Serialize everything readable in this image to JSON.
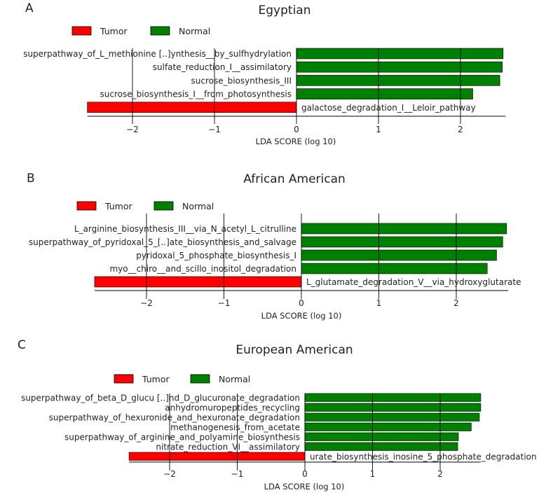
{
  "chart_data": [
    {
      "type": "bar",
      "panel_letter": "A",
      "title": "Egyptian",
      "xlabel": "LDA SCORE (log 10)",
      "xlim": [
        -2.55,
        2.55
      ],
      "xticks": [
        -2,
        -1,
        0,
        1,
        2
      ],
      "xtick_labels": [
        "−2",
        "−1",
        "0",
        "1",
        "2"
      ],
      "legend": {
        "position": "top-left",
        "entries": [
          {
            "name": "Tumor",
            "color": "#ff0000"
          },
          {
            "name": "Normal",
            "color": "#008000"
          }
        ]
      },
      "categories": [
        "superpathway_of_L_methionine [..]ynthesis__by_sulfhydrylation",
        "sulfate_reduction_I__assimilatory",
        "sucrose_biosynthesis_III",
        "sucrose_biosynthesis_I__from_photosynthesis",
        "galactose_degradation_I__Leloir_pathway"
      ],
      "values": [
        2.52,
        2.51,
        2.48,
        2.15,
        -2.55
      ],
      "groups": [
        "Normal",
        "Normal",
        "Normal",
        "Normal",
        "Tumor"
      ]
    },
    {
      "type": "bar",
      "panel_letter": "B",
      "title": "African American",
      "xlabel": "LDA SCORE (log 10)",
      "xlim": [
        -2.67,
        2.67
      ],
      "xticks": [
        -2,
        -1,
        0,
        1,
        2
      ],
      "xtick_labels": [
        "−2",
        "−1",
        "0",
        "1",
        "2"
      ],
      "legend": {
        "position": "top-left",
        "entries": [
          {
            "name": "Tumor",
            "color": "#ff0000"
          },
          {
            "name": "Normal",
            "color": "#008000"
          }
        ]
      },
      "categories": [
        "L_arginine_biosynthesis_III__via_N_acetyl_L_citrulline",
        "superpathway_of_pyridoxal_5_[..]ate_biosynthesis_and_salvage",
        "pyridoxal_5_phosphate_biosynthesis_I",
        "myo__chiro__and_scillo_inositol_degradation",
        "L_glutamate_degradation_V__via_hydroxyglutarate"
      ],
      "values": [
        2.65,
        2.6,
        2.52,
        2.4,
        -2.67
      ],
      "groups": [
        "Normal",
        "Normal",
        "Normal",
        "Normal",
        "Tumor"
      ]
    },
    {
      "type": "bar",
      "panel_letter": "C",
      "title": "European American",
      "xlabel": "LDA SCORE (log 10)",
      "xlim": [
        -2.6,
        2.6
      ],
      "xticks": [
        -2,
        -1,
        0,
        1,
        2
      ],
      "xtick_labels": [
        "−2",
        "−1",
        "0",
        "1",
        "2"
      ],
      "legend": {
        "position": "top-left",
        "entries": [
          {
            "name": "Tumor",
            "color": "#ff0000"
          },
          {
            "name": "Normal",
            "color": "#008000"
          }
        ]
      },
      "categories": [
        "superpathway_of_beta_D_glucu [..]nd_D_glucuronate_degradation",
        "anhydromuropeptides_recycling",
        "superpathway_of_hexuronide_and_hexuronate_degradation",
        "methanogenesis_from_acetate",
        "superpathway_of_arginine_and_polyamine_biosynthesis",
        "nitrate_reduction_VI__assimilatory",
        "urate_biosynthesis_inosine_5_phosphate_degradation"
      ],
      "values": [
        2.6,
        2.6,
        2.58,
        2.46,
        2.27,
        2.26,
        -2.6
      ],
      "groups": [
        "Normal",
        "Normal",
        "Normal",
        "Normal",
        "Normal",
        "Normal",
        "Tumor"
      ]
    }
  ]
}
